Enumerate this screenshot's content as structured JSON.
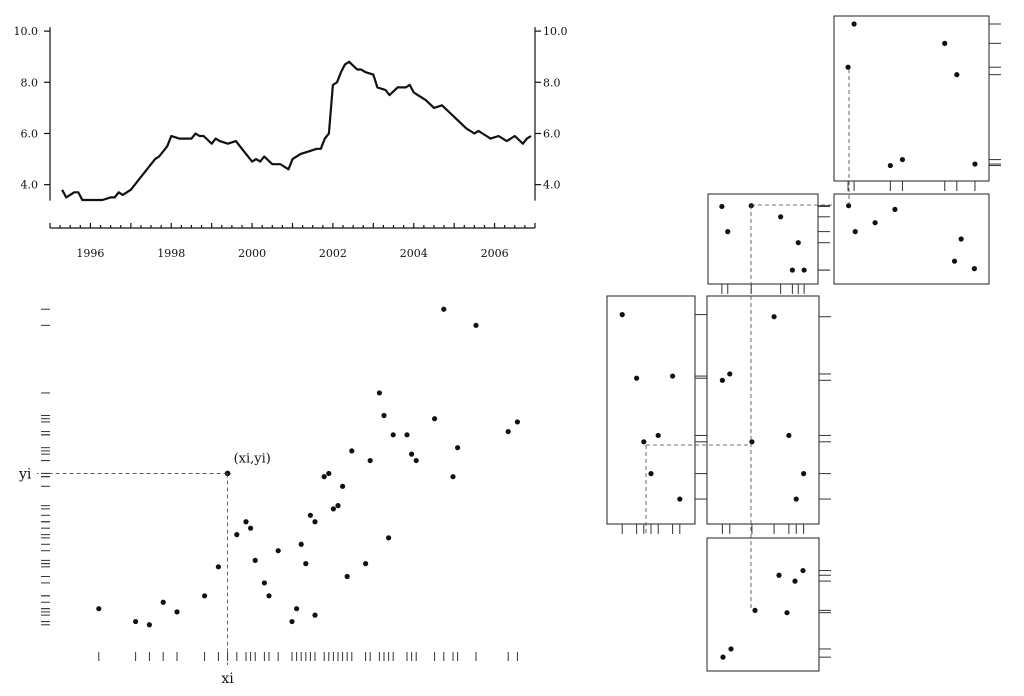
{
  "chart_data": [
    {
      "type": "line",
      "title": "",
      "xlabel": "",
      "ylabel": "",
      "xlim": [
        1995.0,
        2007.0
      ],
      "ylim": [
        3.4,
        10.2
      ],
      "yticks": [
        4.0,
        6.0,
        8.0,
        10.0
      ],
      "ytick_labels": [
        "4.0",
        "6.0",
        "8.0",
        "10.0"
      ],
      "xticks": [
        1996,
        1998,
        2000,
        2002,
        2004,
        2006
      ],
      "xtick_labels": [
        "1996",
        "1998",
        "2000",
        "2002",
        "2004",
        "2006"
      ],
      "x": [
        1995.3,
        1995.4,
        1995.6,
        1995.7,
        1995.8,
        1996.0,
        1996.2,
        1996.3,
        1996.5,
        1996.6,
        1996.7,
        1996.8,
        1997.0,
        1997.2,
        1997.4,
        1997.6,
        1997.7,
        1997.9,
        1998.0,
        1998.2,
        1998.4,
        1998.5,
        1998.6,
        1998.7,
        1998.8,
        1999.0,
        1999.1,
        1999.2,
        1999.4,
        1999.6,
        1999.8,
        2000.0,
        2000.1,
        2000.2,
        2000.3,
        2000.5,
        2000.7,
        2000.9,
        2001.0,
        2001.2,
        2001.4,
        2001.6,
        2001.7,
        2001.8,
        2001.9,
        2002.0,
        2002.1,
        2002.2,
        2002.3,
        2002.4,
        2002.6,
        2002.7,
        2002.8,
        2003.0,
        2003.1,
        2003.3,
        2003.4,
        2003.6,
        2003.8,
        2003.9,
        2004.0,
        2004.1,
        2004.3,
        2004.5,
        2004.7,
        2004.9,
        2005.1,
        2005.3,
        2005.5,
        2005.6,
        2005.8,
        2005.9,
        2006.1,
        2006.3,
        2006.5,
        2006.7,
        2006.8,
        2006.9
      ],
      "values": [
        3.8,
        3.5,
        3.7,
        3.7,
        3.4,
        3.4,
        3.4,
        3.4,
        3.5,
        3.5,
        3.7,
        3.6,
        3.8,
        4.2,
        4.6,
        5.0,
        5.1,
        5.5,
        5.9,
        5.8,
        5.8,
        5.8,
        6.0,
        5.9,
        5.9,
        5.6,
        5.8,
        5.7,
        5.6,
        5.7,
        5.3,
        4.9,
        5.0,
        4.9,
        5.1,
        4.8,
        4.8,
        4.6,
        5.0,
        5.2,
        5.3,
        5.4,
        5.4,
        5.8,
        6.0,
        7.9,
        8.0,
        8.4,
        8.7,
        8.8,
        8.5,
        8.5,
        8.4,
        8.3,
        7.8,
        7.7,
        7.5,
        7.8,
        7.8,
        7.9,
        7.6,
        7.5,
        7.3,
        7.0,
        7.1,
        6.8,
        6.5,
        6.2,
        6.0,
        6.1,
        5.9,
        5.8,
        5.9,
        5.7,
        5.9,
        5.6,
        5.8,
        5.9
      ]
    },
    {
      "type": "scatter",
      "title": "",
      "xlabel": "",
      "ylabel": "",
      "annotation_point": "(xi,yi)",
      "x_marker_label": "xi",
      "y_marker_label": "yi",
      "highlight": [
        31,
        48
      ],
      "x": [
        3,
        11,
        14,
        17,
        20,
        26,
        29,
        31,
        33,
        35,
        36,
        37,
        39,
        40,
        42,
        45,
        46,
        47,
        48,
        49,
        50,
        50,
        52,
        53,
        54,
        55,
        56,
        57,
        58,
        61,
        62,
        64,
        65,
        66,
        67,
        70,
        71,
        72,
        76,
        78,
        80,
        81,
        85,
        92,
        94
      ],
      "y": [
        6,
        2,
        1,
        8,
        5,
        10,
        19,
        48,
        29,
        33,
        31,
        21,
        14,
        10,
        24,
        2,
        6,
        26,
        20,
        35,
        33,
        4,
        47,
        48,
        37,
        38,
        44,
        16,
        55,
        20,
        52,
        73,
        66,
        28,
        60,
        60,
        54,
        52,
        65,
        99,
        47,
        56,
        94,
        61,
        64
      ]
    },
    {
      "type": "scatter",
      "title": "",
      "panel": "matrix-top-right",
      "x": [
        1,
        2,
        8,
        10,
        17,
        19,
        22
      ],
      "y": [
        71,
        100,
        5,
        9,
        87,
        66,
        6
      ]
    },
    {
      "type": "scatter",
      "title": "",
      "panel": "matrix-row2-right",
      "x": [
        1,
        2,
        5,
        8,
        17,
        18,
        20
      ],
      "y": [
        95,
        60,
        72,
        90,
        20,
        50,
        10
      ]
    },
    {
      "type": "scatter",
      "title": "",
      "panel": "matrix-row2-center",
      "x": [
        2,
        3,
        7,
        12,
        14,
        15,
        16
      ],
      "y": [
        94,
        60,
        95,
        80,
        8,
        45,
        8
      ]
    },
    {
      "type": "scatter",
      "title": "",
      "panel": "matrix-row3-left",
      "x": [
        2,
        4,
        5,
        6,
        7,
        9,
        10
      ],
      "y": [
        95,
        65,
        35,
        20,
        38,
        66,
        8
      ]
    },
    {
      "type": "scatter",
      "title": "",
      "panel": "matrix-row3-center",
      "x": [
        2,
        3,
        6,
        9,
        11,
        12,
        13
      ],
      "y": [
        64,
        67,
        35,
        94,
        38,
        8,
        20
      ]
    },
    {
      "type": "scatter",
      "title": "",
      "panel": "matrix-bottom-center",
      "x": [
        2,
        3,
        6,
        9,
        10,
        11,
        12
      ],
      "y": [
        5,
        12,
        45,
        75,
        43,
        70,
        79
      ]
    }
  ]
}
